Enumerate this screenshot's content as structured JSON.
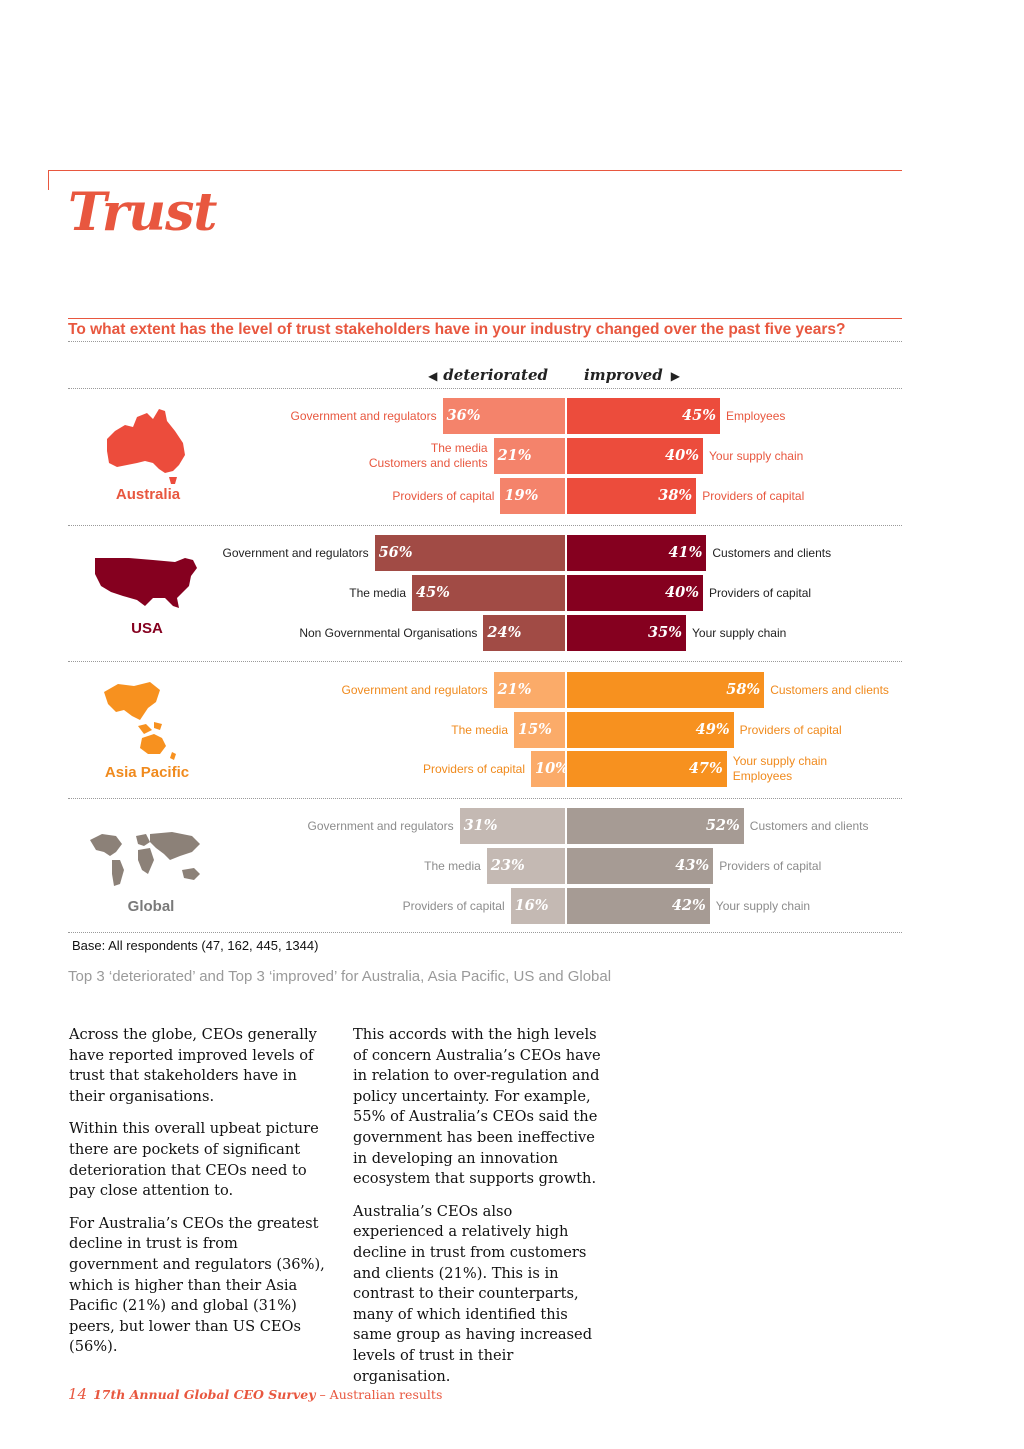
{
  "page_title": "Trust",
  "question": "To what extent has the level of trust stakeholders have in your industry changed over the past five years?",
  "direction": {
    "left": "deteriorated",
    "right": "improved"
  },
  "chart_data": {
    "type": "bar",
    "title": "To what extent has the level of trust stakeholders have in your industry changed over the past five years?",
    "orientation": "diverging-horizontal",
    "unit": "%",
    "xlim": [
      -60,
      60
    ],
    "regions": [
      {
        "name": "Australia",
        "color_deteriorated": "#f4836b",
        "color_improved": "#ec4c3c",
        "label_color": "#e8573f",
        "deteriorated": [
          {
            "label": "Government and regulators",
            "value": 36,
            "display": "36%"
          },
          {
            "label": "The media\nCustomers and clients",
            "value": 21,
            "display": "21%"
          },
          {
            "label": "Providers of capital",
            "value": 19,
            "display": "19%"
          }
        ],
        "improved": [
          {
            "label": "Employees",
            "value": 45,
            "display": "45%"
          },
          {
            "label": "Your supply chain",
            "value": 40,
            "display": "40%"
          },
          {
            "label": "Providers of capital",
            "value": 38,
            "display": "38%"
          }
        ]
      },
      {
        "name": "USA",
        "color_deteriorated": "#a14b45",
        "color_improved": "#85001f",
        "label_color": "#222222",
        "deteriorated": [
          {
            "label": "Government and regulators",
            "value": 56,
            "display": "56%"
          },
          {
            "label": "The media",
            "value": 45,
            "display": "45%"
          },
          {
            "label": "Non Governmental Organisations",
            "value": 24,
            "display": "24%"
          }
        ],
        "improved": [
          {
            "label": "Customers and clients",
            "value": 41,
            "display": "41%"
          },
          {
            "label": "Providers of capital",
            "value": 40,
            "display": "40%"
          },
          {
            "label": "Your supply chain",
            "value": 35,
            "display": "35%"
          }
        ]
      },
      {
        "name": "Asia Pacific",
        "color_deteriorated": "#fbab69",
        "color_improved": "#f7911f",
        "label_color": "#f08a1d",
        "deteriorated": [
          {
            "label": "Government and regulators",
            "value": 21,
            "display": "21%"
          },
          {
            "label": "The media",
            "value": 15,
            "display": "15%"
          },
          {
            "label": "Providers of capital",
            "value": 10,
            "display": "10%"
          }
        ],
        "improved": [
          {
            "label": "Customers and clients",
            "value": 58,
            "display": "58%"
          },
          {
            "label": "Providers of capital",
            "value": 49,
            "display": "49%"
          },
          {
            "label": "Your supply chain\nEmployees",
            "value": 47,
            "display": "47%"
          }
        ]
      },
      {
        "name": "Global",
        "color_deteriorated": "#c4b9b3",
        "color_improved": "#a69b94",
        "label_color": "#8c8c8c",
        "deteriorated": [
          {
            "label": "Government and regulators",
            "value": 31,
            "display": "31%"
          },
          {
            "label": "The media",
            "value": 23,
            "display": "23%"
          },
          {
            "label": "Providers of capital",
            "value": 16,
            "display": "16%"
          }
        ],
        "improved": [
          {
            "label": "Customers and clients",
            "value": 52,
            "display": "52%"
          },
          {
            "label": "Providers of capital",
            "value": 43,
            "display": "43%"
          },
          {
            "label": "Your supply chain",
            "value": 42,
            "display": "42%"
          }
        ]
      }
    ]
  },
  "base_note": "Base: All respondents (47, 162, 445, 1344)",
  "caption": "Top 3 ‘deteriorated’ and Top 3 ‘improved’ for Australia, Asia Pacific, US and Global",
  "body": {
    "col1": [
      "Across the globe, CEOs generally have reported improved levels of trust that stakeholders have in their organisations.",
      "Within this overall upbeat picture there are pockets of significant deterioration that CEOs need to pay close attention to.",
      "For Australia’s CEOs the greatest decline in trust is from government and regulators (36%), which is higher than their Asia Pacific (21%) and global (31%) peers, but lower than US CEOs (56%)."
    ],
    "col2": [
      "This accords with the high levels of concern Australia’s CEOs have in relation to over-regulation and policy uncertainty. For example, 55% of Australia’s CEOs said the government has been ineffective in developing an innovation ecosystem that supports growth.",
      "Australia’s CEOs also experienced a relatively high decline in trust from customers and clients (21%). This is in contrast to their counterparts, many of which identified this same group as having increased levels of trust in their organisation."
    ]
  },
  "footer": {
    "page_number": "14",
    "publication": "17th Annual Global CEO Survey",
    "suffix": " – Australian results"
  }
}
